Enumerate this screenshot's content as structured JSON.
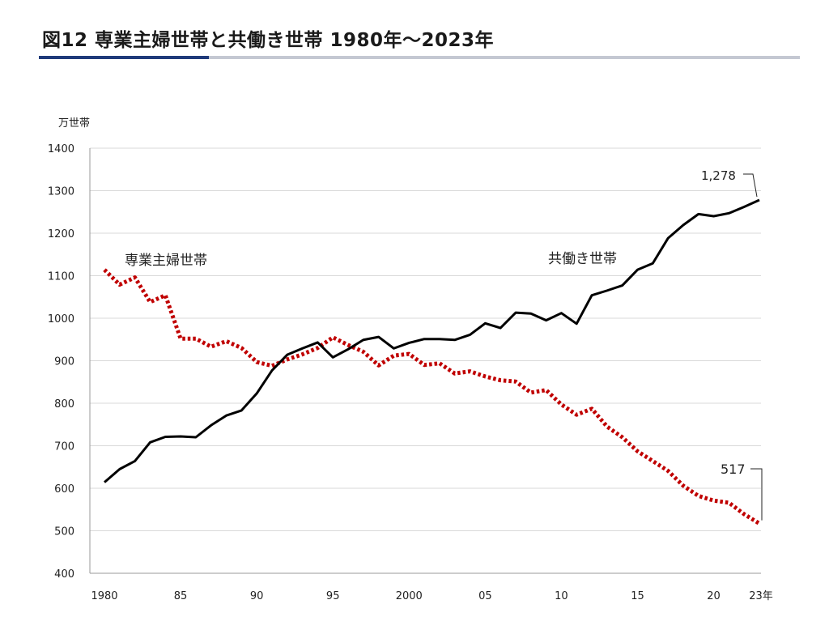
{
  "page_title": "図12 専業主婦世帯と共働き世帯 1980年〜2023年",
  "colors": {
    "accent_dark": "#1f3a7a",
    "accent_light": "#c4c8d2",
    "housewife_series": "#c00000",
    "dual_income_series": "#000000",
    "gridline": "#d9d9d9"
  },
  "chart_data": {
    "type": "line",
    "title": "",
    "ylabel": "万世帯",
    "xlabel": "",
    "ylim": [
      400,
      1400
    ],
    "xlim": [
      1980,
      2023
    ],
    "yticks": [
      "400",
      "500",
      "600",
      "700",
      "800",
      "900",
      "1000",
      "1100",
      "1200",
      "1300",
      "1400"
    ],
    "xticks": [
      {
        "value": 1980,
        "label": "1980"
      },
      {
        "value": 1985,
        "label": "85"
      },
      {
        "value": 1990,
        "label": "90"
      },
      {
        "value": 1995,
        "label": "95"
      },
      {
        "value": 2000,
        "label": "2000"
      },
      {
        "value": 2005,
        "label": "05"
      },
      {
        "value": 2010,
        "label": "10"
      },
      {
        "value": 2015,
        "label": "15"
      },
      {
        "value": 2020,
        "label": "20"
      },
      {
        "value": 2023,
        "label": "23年"
      }
    ],
    "grid": true,
    "x": [
      1980,
      1981,
      1982,
      1983,
      1984,
      1985,
      1986,
      1987,
      1988,
      1989,
      1990,
      1991,
      1992,
      1993,
      1994,
      1995,
      1996,
      1997,
      1998,
      1999,
      2000,
      2001,
      2002,
      2003,
      2004,
      2005,
      2006,
      2007,
      2008,
      2009,
      2010,
      2011,
      2012,
      2013,
      2014,
      2015,
      2016,
      2017,
      2018,
      2019,
      2020,
      2021,
      2022,
      2023
    ],
    "series": [
      {
        "name": "専業主婦世帯",
        "style": "dotted",
        "color": "#c00000",
        "values": [
          1114,
          1079,
          1096,
          1038,
          1054,
          952,
          952,
          933,
          946,
          930,
          897,
          888,
          903,
          915,
          930,
          955,
          937,
          921,
          889,
          912,
          916,
          890,
          894,
          870,
          875,
          863,
          854,
          851,
          825,
          831,
          797,
          773,
          787,
          745,
          720,
          687,
          664,
          641,
          606,
          582,
          571,
          566,
          539,
          517
        ]
      },
      {
        "name": "共働き世帯",
        "style": "solid",
        "color": "#000000",
        "values": [
          614,
          645,
          664,
          708,
          721,
          722,
          720,
          748,
          771,
          783,
          823,
          877,
          914,
          929,
          943,
          908,
          927,
          949,
          956,
          929,
          942,
          951,
          951,
          949,
          961,
          988,
          977,
          1013,
          1011,
          995,
          1012,
          987,
          1054,
          1065,
          1077,
          1114,
          1129,
          1188,
          1219,
          1245,
          1240,
          1247,
          1262,
          1278
        ]
      }
    ],
    "annotations": [
      {
        "text": "専業主婦世帯",
        "series": "専業主婦世帯"
      },
      {
        "text": "共働き世帯",
        "series": "共働き世帯"
      },
      {
        "text": "1,278",
        "series": "共働き世帯",
        "at_x": 2023
      },
      {
        "text": "517",
        "series": "専業主婦世帯",
        "at_x": 2023
      }
    ]
  }
}
